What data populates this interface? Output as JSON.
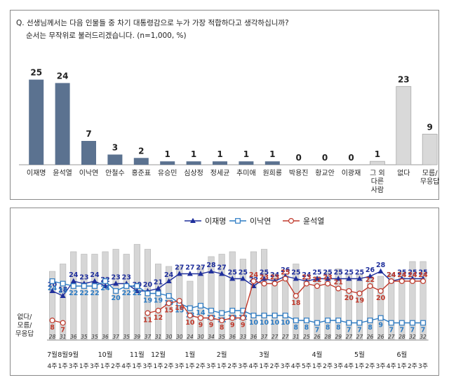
{
  "question": {
    "line1": "Q. 선생님께서는 다음 인물들 중 차기 대통령감으로 누가 가장 적합하다고 생각하십니까?",
    "line2": "순서는 무작위로 불러드리겠습니다. (n=1,000, %)"
  },
  "chart_data": [
    {
      "type": "bar",
      "categories": [
        "이재명",
        "윤석열",
        "이낙연",
        "안철수",
        "홍준표",
        "유승민",
        "심상정",
        "정세균",
        "추미애",
        "원희룡",
        "박용진",
        "황교안",
        "이광재",
        "그 외 다른 사람",
        "없다",
        "모름/무응답"
      ],
      "values": [
        25,
        24,
        7,
        3,
        2,
        1,
        1,
        1,
        1,
        1,
        0,
        0,
        0,
        1,
        23,
        9
      ],
      "colors": {
        "candidate": "#5b7290",
        "other": "#d9d9d9"
      },
      "ylim": [
        0,
        28
      ]
    },
    {
      "type": "line",
      "bar_series_label": "없다/ 모름/ 무응답",
      "months": [
        {
          "label": "7월",
          "weeks": [
            "4주"
          ]
        },
        {
          "label": "8월",
          "weeks": [
            "1주"
          ]
        },
        {
          "label": "9월",
          "weeks": [
            "3주",
            "1주",
            "3주"
          ]
        },
        {
          "label": "10월",
          "weeks": [
            "1주",
            "2주",
            "4주"
          ]
        },
        {
          "label": "11월",
          "weeks": [
            "1주",
            "3주"
          ]
        },
        {
          "label": "12월",
          "weeks": [
            "1주",
            "2주",
            "3주"
          ]
        },
        {
          "label": "1월",
          "weeks": [
            "1주",
            "2주",
            "3주"
          ]
        },
        {
          "label": "2월",
          "weeks": [
            "1주",
            "2주",
            "3주",
            "4주"
          ]
        },
        {
          "label": "3월",
          "weeks": [
            "1주",
            "2주",
            "3주",
            "4주",
            "5주"
          ]
        },
        {
          "label": "4월",
          "weeks": [
            "1주",
            "2주",
            "3주",
            "4주"
          ]
        },
        {
          "label": "5월",
          "weeks": [
            "1주",
            "2주",
            "3주",
            "4주"
          ]
        },
        {
          "label": "6월",
          "weeks": [
            "1주",
            "2주",
            "3주"
          ]
        }
      ],
      "bars": [
        28,
        31,
        36,
        35,
        35,
        36,
        37,
        35,
        39,
        37,
        31,
        30,
        30,
        24,
        30,
        34,
        35,
        36,
        33,
        36,
        37,
        27,
        27,
        31,
        25,
        26,
        28,
        29,
        27,
        27,
        26,
        26,
        27,
        28,
        32,
        32
      ],
      "series": [
        {
          "name": "이재명",
          "color": "#1f2f9c",
          "marker": "triangle",
          "values": [
            20,
            18,
            24,
            23,
            24,
            22,
            23,
            23,
            20,
            20,
            21,
            24,
            27,
            27,
            27,
            28,
            27,
            25,
            25,
            22,
            25,
            24,
            26,
            25,
            24,
            25,
            25,
            25,
            25,
            25,
            26,
            28,
            24,
            25,
            25,
            25
          ]
        },
        {
          "name": "이낙연",
          "color": "#2c7bc4",
          "marker": "square",
          "values": [
            24,
            23,
            22,
            22,
            22,
            24,
            20,
            22,
            22,
            19,
            19,
            18,
            15,
            13,
            14,
            12,
            11,
            12,
            12,
            10,
            10,
            10,
            10,
            8,
            8,
            7,
            8,
            8,
            7,
            7,
            8,
            9,
            7,
            7,
            7,
            7
          ]
        },
        {
          "name": "윤석열",
          "color": "#c0392b",
          "marker": "circle",
          "values": [
            8,
            7,
            null,
            null,
            null,
            null,
            null,
            null,
            null,
            11,
            12,
            15,
            16,
            10,
            9,
            9,
            8,
            9,
            9,
            24,
            23,
            23,
            25,
            18,
            23,
            22,
            23,
            21,
            20,
            19,
            22,
            20,
            24,
            24,
            24,
            24
          ]
        }
      ],
      "ylim": [
        0,
        40
      ]
    }
  ]
}
